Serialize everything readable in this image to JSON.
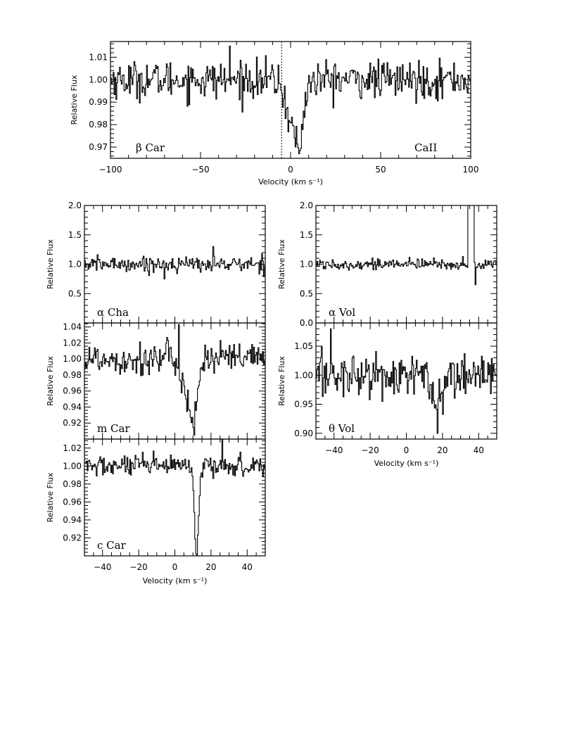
{
  "chart_data": [
    {
      "type": "line",
      "panel": "beta-car",
      "label": "β Car",
      "species": "CaII",
      "xlabel": "Velocity (km s⁻¹)",
      "ylabel": "Relative Flux",
      "xlim": [
        -100,
        100
      ],
      "ylim": [
        0.965,
        1.017
      ],
      "xticks": [
        -100,
        -50,
        0,
        50,
        100
      ],
      "yticks": [
        0.97,
        0.98,
        0.99,
        1.0,
        1.01
      ],
      "ytick_labels": [
        "0.97",
        "0.98",
        "0.99",
        "1.00",
        "1.01"
      ],
      "reference_line_x": -5,
      "noise": 0.0055,
      "absorption": [
        {
          "center": 3,
          "depth": 0.022,
          "width": 3.5
        },
        {
          "center": -2,
          "depth": 0.006,
          "width": 3
        },
        {
          "center": 5,
          "depth": 0.012,
          "width": 1.2
        }
      ],
      "min_point": [
        4.5,
        0.967
      ],
      "max_point": [
        -34,
        1.015
      ]
    },
    {
      "type": "line",
      "panel": "alpha-cha",
      "label": "α Cha",
      "ylabel": "Relative Flux",
      "xlim": [
        -50,
        50
      ],
      "ylim": [
        0.0,
        2.0
      ],
      "xticks": [
        -40,
        -20,
        0,
        20,
        40
      ],
      "yticks": [
        0.0,
        0.5,
        1.0,
        1.5,
        2.0
      ],
      "ytick_labels": [
        "",
        "0.5",
        "1.0",
        "1.5",
        "2.0"
      ],
      "noise": 0.085,
      "absorption": [],
      "min_point": [
        -6,
        0.75
      ],
      "max_point": [
        21,
        1.3
      ]
    },
    {
      "type": "line",
      "panel": "m-car",
      "label": "m Car",
      "ylabel": "Relative Flux",
      "xlim": [
        -50,
        50
      ],
      "ylim": [
        0.9,
        1.045
      ],
      "xticks": [
        -40,
        -20,
        0,
        20,
        40
      ],
      "yticks": [
        0.92,
        0.94,
        0.96,
        0.98,
        1.0,
        1.02,
        1.04
      ],
      "ytick_labels": [
        "0.92",
        "0.94",
        "0.96",
        "0.98",
        "1.00",
        "1.02",
        "1.04"
      ],
      "noise": 0.014,
      "absorption": [
        {
          "center": 10,
          "depth": 0.07,
          "width": 2.2
        },
        {
          "center": 6,
          "depth": 0.03,
          "width": 2.5
        }
      ],
      "min_point": [
        10.5,
        0.905
      ],
      "max_point": [
        2,
        1.043
      ]
    },
    {
      "type": "line",
      "panel": "c-car",
      "label": "c Car",
      "xlabel": "Velocity (km s⁻¹)",
      "ylabel": "Relative Flux",
      "xlim": [
        -50,
        50
      ],
      "ylim": [
        0.9,
        1.03
      ],
      "xticks": [
        -40,
        -20,
        0,
        20,
        40
      ],
      "yticks": [
        0.92,
        0.94,
        0.96,
        0.98,
        1.0,
        1.02
      ],
      "ytick_labels": [
        "0.92",
        "0.94",
        "0.96",
        "0.98",
        "1.00",
        "1.02"
      ],
      "noise": 0.008,
      "absorption": [
        {
          "center": 11.5,
          "depth": 0.09,
          "width": 0.9
        },
        {
          "center": 12.5,
          "depth": 0.03,
          "width": 1.5
        }
      ],
      "min_point": [
        11.5,
        0.902
      ],
      "max_point": [
        26,
        1.03
      ]
    },
    {
      "type": "line",
      "panel": "alpha-vol",
      "label": "α Vol",
      "ylabel": "Relative Flux",
      "xlim": [
        -50,
        50
      ],
      "ylim": [
        0.0,
        2.0
      ],
      "xticks": [
        -40,
        -20,
        0,
        20,
        40
      ],
      "yticks": [
        0.0,
        0.5,
        1.0,
        1.5,
        2.0
      ],
      "ytick_labels": [
        "0.0",
        "0.5",
        "1.0",
        "1.5",
        "2.0"
      ],
      "noise": 0.06,
      "absorption": [],
      "emission": {
        "start": 34,
        "end": 37,
        "peak": 2.2
      },
      "min_point": [
        38,
        0.65
      ],
      "max_point": [
        35.5,
        2.0
      ]
    },
    {
      "type": "line",
      "panel": "theta-vol",
      "label": "θ Vol",
      "xlabel": "Velocity (km s⁻¹)",
      "ylabel": "Relative Flux",
      "xlim": [
        -50,
        50
      ],
      "ylim": [
        0.89,
        1.09
      ],
      "xticks": [
        -40,
        -20,
        0,
        20,
        40
      ],
      "yticks": [
        0.9,
        0.95,
        1.0,
        1.05
      ],
      "ytick_labels": [
        "0.90",
        "0.95",
        "1.00",
        "1.05"
      ],
      "noise": 0.026,
      "absorption": [
        {
          "center": 17,
          "depth": 0.06,
          "width": 2.5
        }
      ],
      "min_point": [
        17,
        0.9
      ],
      "max_point": [
        -42,
        1.08
      ]
    }
  ]
}
